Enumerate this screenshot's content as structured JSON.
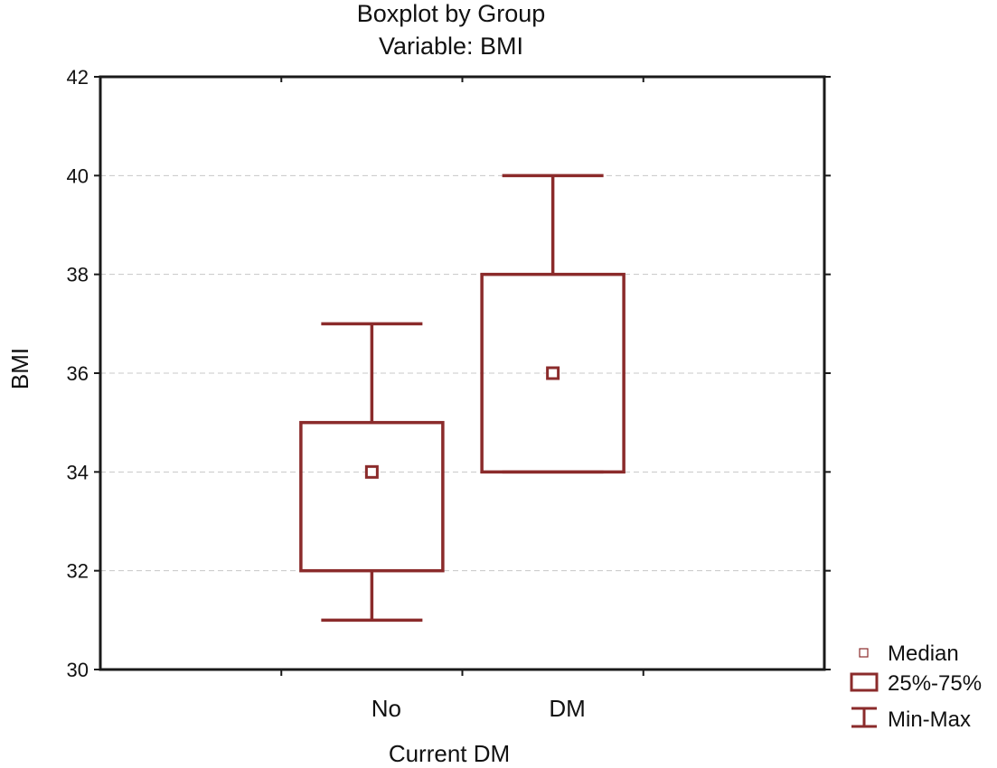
{
  "chart_data": {
    "type": "boxplot",
    "title": "Boxplot by Group",
    "subtitle": "Variable: BMI",
    "xlabel": "Current DM",
    "ylabel": "BMI",
    "ylim": [
      30,
      42
    ],
    "yticks": [
      30,
      32,
      34,
      36,
      38,
      40,
      42
    ],
    "grid": true,
    "categories": [
      "No",
      "DM"
    ],
    "groups": [
      {
        "name": "No",
        "min": 31,
        "q1": 32,
        "median": 34,
        "q3": 35,
        "max": 37
      },
      {
        "name": "DM",
        "min": 34,
        "q1": 34,
        "median": 36,
        "q3": 38,
        "max": 40
      }
    ],
    "legend": {
      "position": "bottom-right",
      "entries": [
        {
          "key": "median",
          "label": "Median"
        },
        {
          "key": "box",
          "label": "25%-75%"
        },
        {
          "key": "whisker",
          "label": "Min-Max"
        }
      ]
    },
    "colors": {
      "series": "#8B2B2B",
      "axis": "#1a1a1a",
      "grid": "#c8c8c8"
    }
  }
}
